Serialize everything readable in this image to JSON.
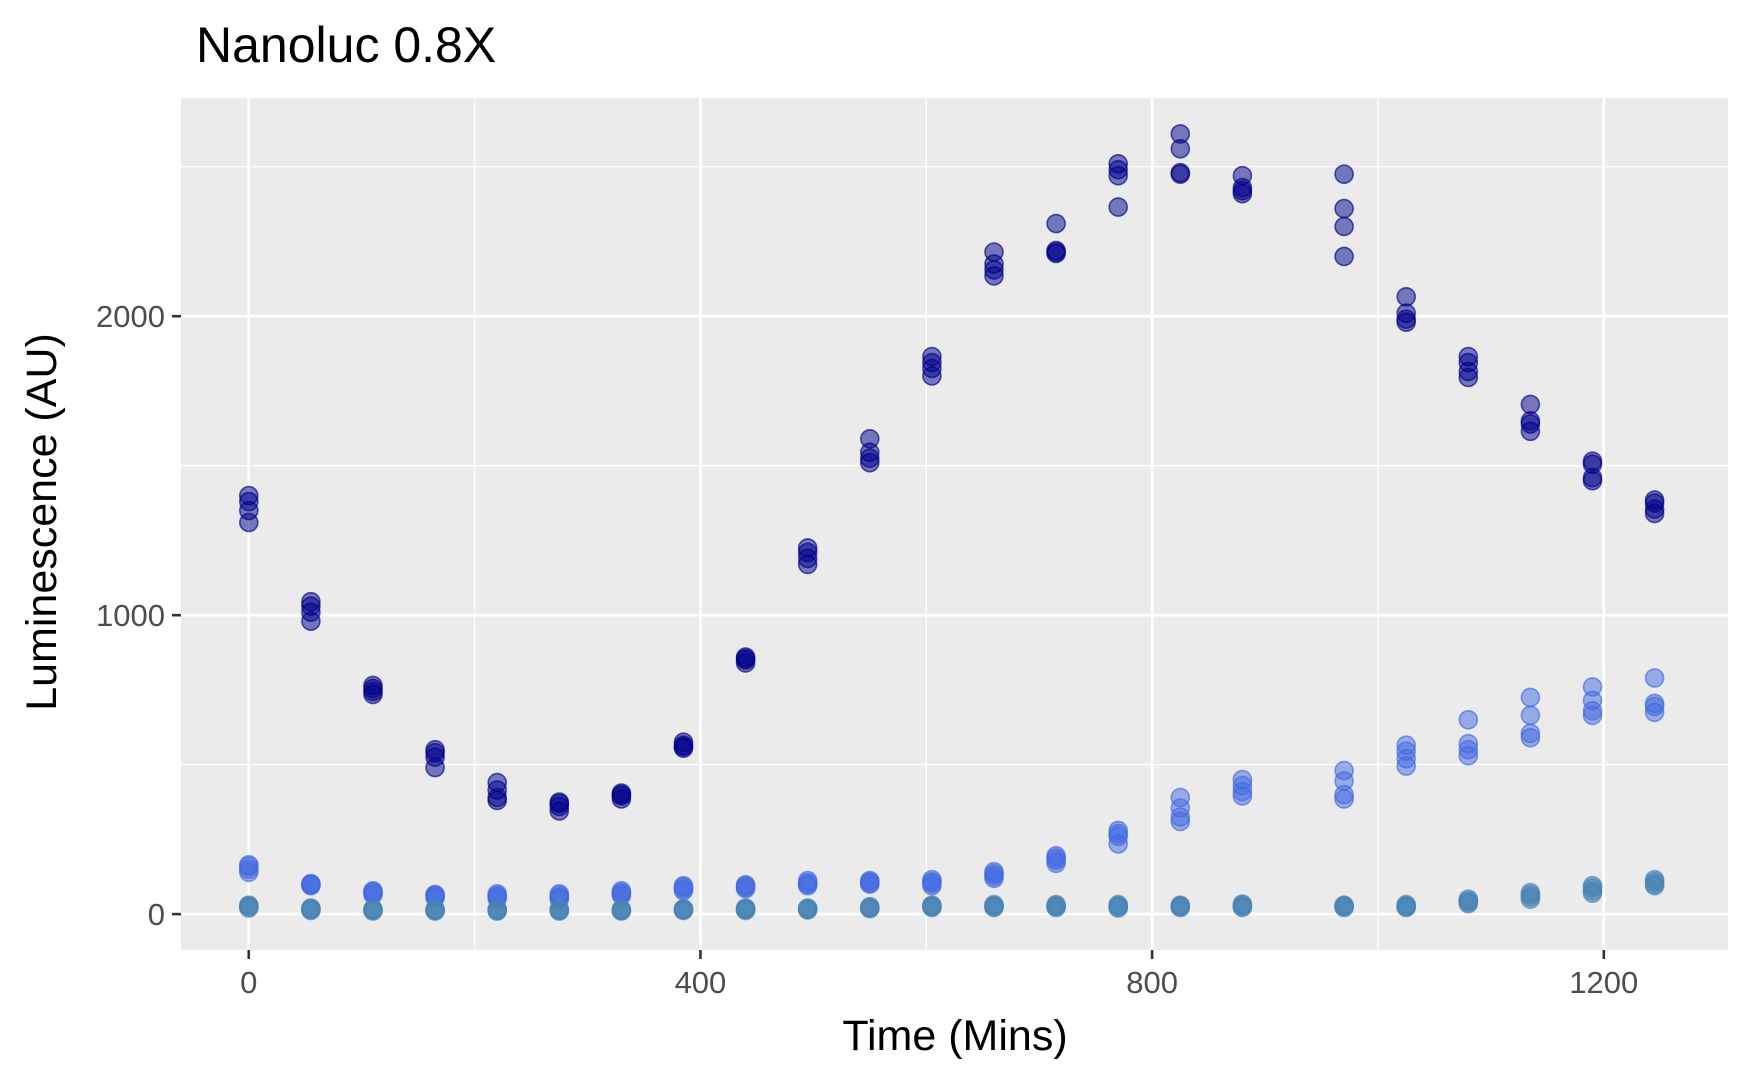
{
  "chart_data": {
    "type": "scatter",
    "title": "Nanoluc 0.8X",
    "xlabel": "Time (Mins)",
    "ylabel": "Luminescence (AU)",
    "xlim": [
      -60,
      1310
    ],
    "ylim": [
      -120,
      2730
    ],
    "x_ticks": [
      0,
      400,
      800,
      1200
    ],
    "x_tick_labels": [
      "0",
      "400",
      "800",
      "1200"
    ],
    "y_ticks": [
      0,
      1000,
      2000
    ],
    "y_tick_labels": [
      "0",
      "1000",
      "2000"
    ],
    "x_minor_ticks": [
      200,
      600,
      1000
    ],
    "y_minor_ticks": [
      500,
      1500,
      2500
    ],
    "grid": true,
    "legend": "none",
    "panel_background": "#ebebeb",
    "point_alpha": 0.5,
    "series": [
      {
        "color": "#00008b",
        "points": [
          [
            0,
            1310
          ],
          [
            0,
            1350
          ],
          [
            0,
            1380
          ],
          [
            0,
            1400
          ],
          [
            55,
            980
          ],
          [
            55,
            1010
          ],
          [
            55,
            1030
          ],
          [
            55,
            1045
          ],
          [
            110,
            735
          ],
          [
            110,
            745
          ],
          [
            110,
            755
          ],
          [
            110,
            765
          ],
          [
            165,
            490
          ],
          [
            165,
            525
          ],
          [
            165,
            540
          ],
          [
            165,
            550
          ],
          [
            220,
            380
          ],
          [
            220,
            390
          ],
          [
            220,
            415
          ],
          [
            220,
            440
          ],
          [
            275,
            345
          ],
          [
            275,
            360
          ],
          [
            275,
            370
          ],
          [
            275,
            375
          ],
          [
            330,
            385
          ],
          [
            330,
            395
          ],
          [
            330,
            400
          ],
          [
            330,
            405
          ],
          [
            385,
            555
          ],
          [
            385,
            560
          ],
          [
            385,
            565
          ],
          [
            385,
            575
          ],
          [
            440,
            840
          ],
          [
            440,
            850
          ],
          [
            440,
            855
          ],
          [
            440,
            860
          ],
          [
            495,
            1170
          ],
          [
            495,
            1190
          ],
          [
            495,
            1210
          ],
          [
            495,
            1225
          ],
          [
            550,
            1510
          ],
          [
            550,
            1525
          ],
          [
            550,
            1545
          ],
          [
            550,
            1590
          ],
          [
            605,
            1800
          ],
          [
            605,
            1825
          ],
          [
            605,
            1845
          ],
          [
            605,
            1865
          ],
          [
            660,
            2135
          ],
          [
            660,
            2155
          ],
          [
            660,
            2175
          ],
          [
            660,
            2215
          ],
          [
            715,
            2210
          ],
          [
            715,
            2215
          ],
          [
            715,
            2220
          ],
          [
            715,
            2310
          ],
          [
            770,
            2365
          ],
          [
            770,
            2470
          ],
          [
            770,
            2490
          ],
          [
            770,
            2510
          ],
          [
            825,
            2475
          ],
          [
            825,
            2480
          ],
          [
            825,
            2560
          ],
          [
            825,
            2610
          ],
          [
            880,
            2410
          ],
          [
            880,
            2420
          ],
          [
            880,
            2430
          ],
          [
            880,
            2470
          ],
          [
            970,
            2200
          ],
          [
            970,
            2300
          ],
          [
            970,
            2360
          ],
          [
            970,
            2475
          ],
          [
            1025,
            1980
          ],
          [
            1025,
            1990
          ],
          [
            1025,
            2010
          ],
          [
            1025,
            2065
          ],
          [
            1080,
            1795
          ],
          [
            1080,
            1815
          ],
          [
            1080,
            1845
          ],
          [
            1080,
            1865
          ],
          [
            1135,
            1615
          ],
          [
            1135,
            1640
          ],
          [
            1135,
            1650
          ],
          [
            1135,
            1705
          ],
          [
            1190,
            1450
          ],
          [
            1190,
            1460
          ],
          [
            1190,
            1505
          ],
          [
            1190,
            1515
          ],
          [
            1245,
            1340
          ],
          [
            1245,
            1355
          ],
          [
            1245,
            1375
          ],
          [
            1245,
            1385
          ]
        ]
      },
      {
        "color": "#4169e1",
        "points": [
          [
            0,
            140
          ],
          [
            0,
            150
          ],
          [
            0,
            160
          ],
          [
            0,
            165
          ],
          [
            55,
            95
          ],
          [
            55,
            98
          ],
          [
            55,
            100
          ],
          [
            55,
            102
          ],
          [
            110,
            65
          ],
          [
            110,
            70
          ],
          [
            110,
            75
          ],
          [
            110,
            78
          ],
          [
            165,
            55
          ],
          [
            165,
            60
          ],
          [
            165,
            63
          ],
          [
            165,
            66
          ],
          [
            220,
            52
          ],
          [
            220,
            58
          ],
          [
            220,
            62
          ],
          [
            220,
            68
          ],
          [
            275,
            50
          ],
          [
            275,
            56
          ],
          [
            275,
            62
          ],
          [
            275,
            68
          ],
          [
            330,
            62
          ],
          [
            330,
            68
          ],
          [
            330,
            72
          ],
          [
            330,
            78
          ],
          [
            385,
            78
          ],
          [
            385,
            84
          ],
          [
            385,
            90
          ],
          [
            385,
            95
          ],
          [
            440,
            85
          ],
          [
            440,
            90
          ],
          [
            440,
            95
          ],
          [
            440,
            98
          ],
          [
            495,
            95
          ],
          [
            495,
            100
          ],
          [
            495,
            105
          ],
          [
            495,
            112
          ],
          [
            550,
            100
          ],
          [
            550,
            104
          ],
          [
            550,
            108
          ],
          [
            550,
            112
          ],
          [
            605,
            95
          ],
          [
            605,
            102
          ],
          [
            605,
            108
          ],
          [
            605,
            115
          ],
          [
            660,
            120
          ],
          [
            660,
            128
          ],
          [
            660,
            135
          ],
          [
            660,
            142
          ],
          [
            715,
            170
          ],
          [
            715,
            180
          ],
          [
            715,
            188
          ],
          [
            715,
            195
          ],
          [
            770,
            235
          ],
          [
            770,
            260
          ],
          [
            770,
            270
          ],
          [
            770,
            280
          ],
          [
            825,
            310
          ],
          [
            825,
            325
          ],
          [
            825,
            355
          ],
          [
            825,
            390
          ],
          [
            880,
            395
          ],
          [
            880,
            410
          ],
          [
            880,
            430
          ],
          [
            880,
            450
          ],
          [
            970,
            385
          ],
          [
            970,
            400
          ],
          [
            970,
            445
          ],
          [
            970,
            480
          ],
          [
            1025,
            495
          ],
          [
            1025,
            520
          ],
          [
            1025,
            545
          ],
          [
            1025,
            565
          ],
          [
            1080,
            530
          ],
          [
            1080,
            550
          ],
          [
            1080,
            570
          ],
          [
            1080,
            650
          ],
          [
            1135,
            590
          ],
          [
            1135,
            605
          ],
          [
            1135,
            665
          ],
          [
            1135,
            725
          ],
          [
            1190,
            665
          ],
          [
            1190,
            680
          ],
          [
            1190,
            715
          ],
          [
            1190,
            760
          ],
          [
            1245,
            675
          ],
          [
            1245,
            695
          ],
          [
            1245,
            705
          ],
          [
            1245,
            790
          ]
        ]
      },
      {
        "color": "#4682b4",
        "points": [
          [
            0,
            20
          ],
          [
            0,
            25
          ],
          [
            0,
            28
          ],
          [
            0,
            30
          ],
          [
            55,
            12
          ],
          [
            55,
            15
          ],
          [
            55,
            18
          ],
          [
            55,
            20
          ],
          [
            110,
            10
          ],
          [
            110,
            13
          ],
          [
            110,
            15
          ],
          [
            110,
            17
          ],
          [
            165,
            10
          ],
          [
            165,
            12
          ],
          [
            165,
            14
          ],
          [
            165,
            16
          ],
          [
            220,
            10
          ],
          [
            220,
            12
          ],
          [
            220,
            14
          ],
          [
            220,
            16
          ],
          [
            275,
            10
          ],
          [
            275,
            12
          ],
          [
            275,
            14
          ],
          [
            275,
            16
          ],
          [
            330,
            10
          ],
          [
            330,
            12
          ],
          [
            330,
            14
          ],
          [
            330,
            16
          ],
          [
            385,
            12
          ],
          [
            385,
            14
          ],
          [
            385,
            16
          ],
          [
            385,
            18
          ],
          [
            440,
            12
          ],
          [
            440,
            15
          ],
          [
            440,
            18
          ],
          [
            440,
            20
          ],
          [
            495,
            14
          ],
          [
            495,
            16
          ],
          [
            495,
            18
          ],
          [
            495,
            20
          ],
          [
            550,
            18
          ],
          [
            550,
            20
          ],
          [
            550,
            22
          ],
          [
            550,
            25
          ],
          [
            605,
            22
          ],
          [
            605,
            25
          ],
          [
            605,
            28
          ],
          [
            605,
            30
          ],
          [
            660,
            22
          ],
          [
            660,
            25
          ],
          [
            660,
            28
          ],
          [
            660,
            32
          ],
          [
            715,
            22
          ],
          [
            715,
            25
          ],
          [
            715,
            28
          ],
          [
            715,
            32
          ],
          [
            770,
            20
          ],
          [
            770,
            24
          ],
          [
            770,
            28
          ],
          [
            770,
            32
          ],
          [
            825,
            22
          ],
          [
            825,
            25
          ],
          [
            825,
            28
          ],
          [
            825,
            30
          ],
          [
            880,
            22
          ],
          [
            880,
            26
          ],
          [
            880,
            30
          ],
          [
            880,
            34
          ],
          [
            970,
            22
          ],
          [
            970,
            25
          ],
          [
            970,
            28
          ],
          [
            970,
            30
          ],
          [
            1025,
            22
          ],
          [
            1025,
            25
          ],
          [
            1025,
            28
          ],
          [
            1025,
            32
          ],
          [
            1080,
            35
          ],
          [
            1080,
            40
          ],
          [
            1080,
            45
          ],
          [
            1080,
            50
          ],
          [
            1135,
            50
          ],
          [
            1135,
            58
          ],
          [
            1135,
            65
          ],
          [
            1135,
            72
          ],
          [
            1190,
            70
          ],
          [
            1190,
            78
          ],
          [
            1190,
            88
          ],
          [
            1190,
            95
          ],
          [
            1245,
            95
          ],
          [
            1245,
            100
          ],
          [
            1245,
            108
          ],
          [
            1245,
            115
          ]
        ]
      }
    ]
  }
}
